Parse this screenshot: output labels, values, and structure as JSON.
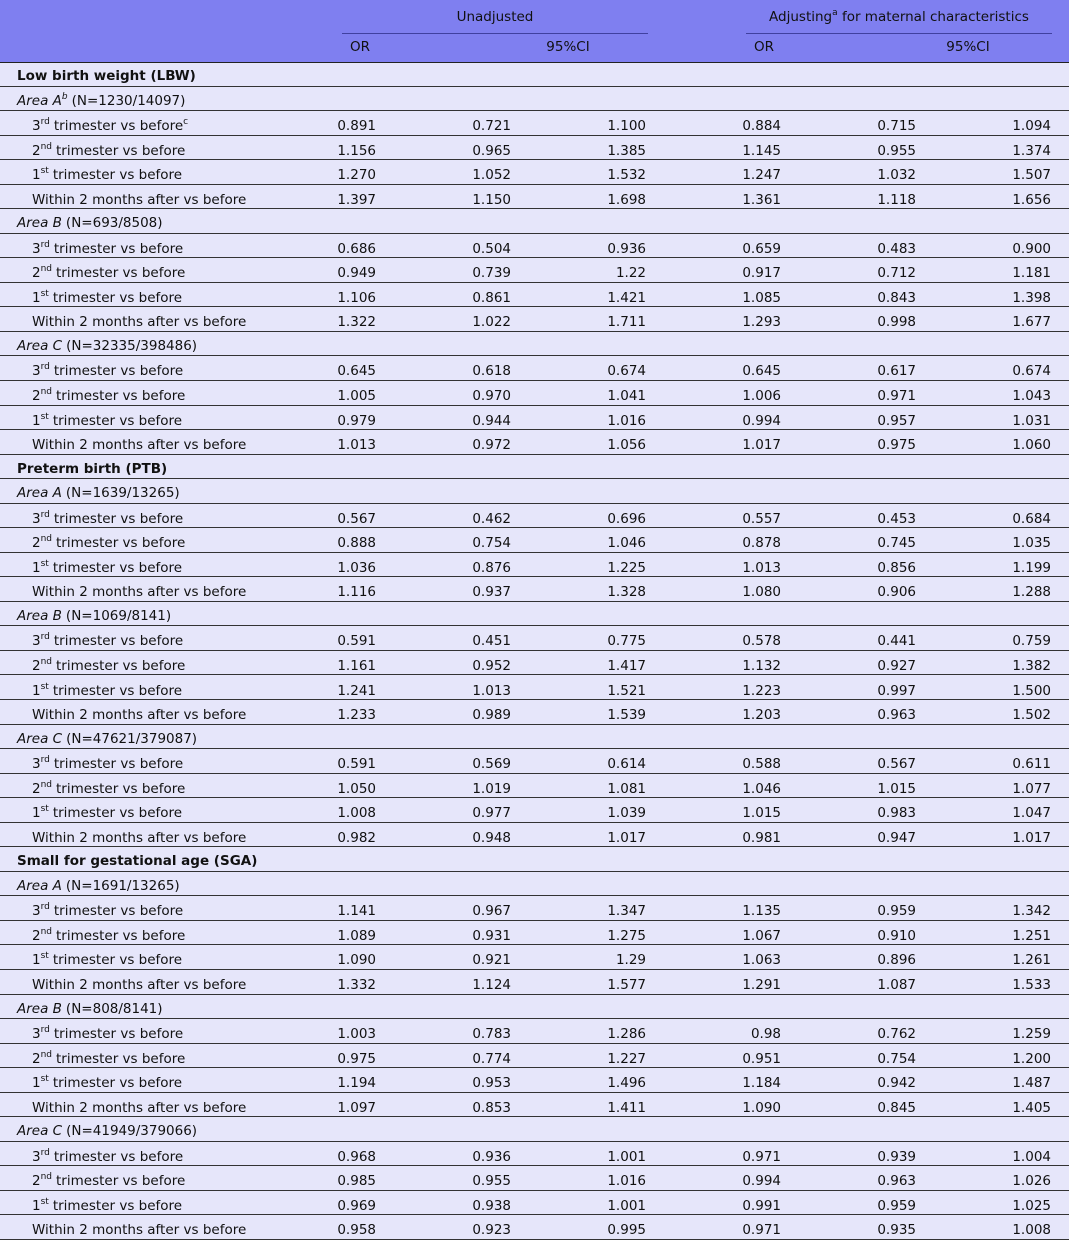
{
  "header": {
    "unadjusted": "Unadjusted",
    "adjusting": "Adjusting",
    "adjusting_note": "a",
    "adjusting_rest": "for maternal characteristics",
    "or": "OR",
    "ci": "95%CI"
  },
  "sections": [
    {
      "title": "Low birth weight (LBW)",
      "areas": [
        {
          "name": "Area A",
          "note": "b",
          "n": "(N=1230/14097)",
          "rows": [
            {
              "ordinal": "3",
              "suffix": "rd",
              "label": "trimester vs before",
              "note": "c",
              "values": [
                "0.891",
                "0.721",
                "1.100",
                "0.884",
                "0.715",
                "1.094"
              ]
            },
            {
              "ordinal": "2",
              "suffix": "nd",
              "label": "trimester vs before",
              "values": [
                "1.156",
                "0.965",
                "1.385",
                "1.145",
                "0.955",
                "1.374"
              ]
            },
            {
              "ordinal": "1",
              "suffix": "st",
              "label": "trimester vs before",
              "values": [
                "1.270",
                "1.052",
                "1.532",
                "1.247",
                "1.032",
                "1.507"
              ]
            },
            {
              "label": "Within 2 months after vs before",
              "values": [
                "1.397",
                "1.150",
                "1.698",
                "1.361",
                "1.118",
                "1.656"
              ]
            }
          ]
        },
        {
          "name": "Area B",
          "n": "(N=693/8508)",
          "rows": [
            {
              "ordinal": "3",
              "suffix": "rd",
              "label": "trimester vs before",
              "values": [
                "0.686",
                "0.504",
                "0.936",
                "0.659",
                "0.483",
                "0.900"
              ]
            },
            {
              "ordinal": "2",
              "suffix": "nd",
              "label": "trimester vs before",
              "values": [
                "0.949",
                "0.739",
                "1.22",
                "0.917",
                "0.712",
                "1.181"
              ]
            },
            {
              "ordinal": "1",
              "suffix": "st",
              "label": "trimester vs before",
              "values": [
                "1.106",
                "0.861",
                "1.421",
                "1.085",
                "0.843",
                "1.398"
              ]
            },
            {
              "label": "Within 2 months after vs before",
              "values": [
                "1.322",
                "1.022",
                "1.711",
                "1.293",
                "0.998",
                "1.677"
              ]
            }
          ]
        },
        {
          "name": "Area C",
          "n": "(N=32335/398486)",
          "rows": [
            {
              "ordinal": "3",
              "suffix": "rd",
              "label": "trimester vs before",
              "values": [
                "0.645",
                "0.618",
                "0.674",
                "0.645",
                "0.617",
                "0.674"
              ]
            },
            {
              "ordinal": "2",
              "suffix": "nd",
              "label": "trimester vs before",
              "values": [
                "1.005",
                "0.970",
                "1.041",
                "1.006",
                "0.971",
                "1.043"
              ]
            },
            {
              "ordinal": "1",
              "suffix": "st",
              "label": "trimester vs before",
              "values": [
                "0.979",
                "0.944",
                "1.016",
                "0.994",
                "0.957",
                "1.031"
              ]
            },
            {
              "label": "Within 2 months after vs before",
              "values": [
                "1.013",
                "0.972",
                "1.056",
                "1.017",
                "0.975",
                "1.060"
              ]
            }
          ]
        }
      ]
    },
    {
      "title": "Preterm birth (PTB)",
      "areas": [
        {
          "name": "Area A",
          "n": "(N=1639/13265)",
          "rows": [
            {
              "ordinal": "3",
              "suffix": "rd",
              "label": "trimester vs before",
              "values": [
                "0.567",
                "0.462",
                "0.696",
                "0.557",
                "0.453",
                "0.684"
              ]
            },
            {
              "ordinal": "2",
              "suffix": "nd",
              "label": "trimester vs before",
              "values": [
                "0.888",
                "0.754",
                "1.046",
                "0.878",
                "0.745",
                "1.035"
              ]
            },
            {
              "ordinal": "1",
              "suffix": "st",
              "label": "trimester vs before",
              "values": [
                "1.036",
                "0.876",
                "1.225",
                "1.013",
                "0.856",
                "1.199"
              ]
            },
            {
              "label": "Within 2 months after vs before",
              "values": [
                "1.116",
                "0.937",
                "1.328",
                "1.080",
                "0.906",
                "1.288"
              ]
            }
          ]
        },
        {
          "name": "Area B",
          "n": "(N=1069/8141)",
          "rows": [
            {
              "ordinal": "3",
              "suffix": "rd",
              "label": "trimester vs before",
              "values": [
                "0.591",
                "0.451",
                "0.775",
                "0.578",
                "0.441",
                "0.759"
              ]
            },
            {
              "ordinal": "2",
              "suffix": "nd",
              "label": "trimester vs before",
              "values": [
                "1.161",
                "0.952",
                "1.417",
                "1.132",
                "0.927",
                "1.382"
              ]
            },
            {
              "ordinal": "1",
              "suffix": "st",
              "label": "trimester vs before",
              "values": [
                "1.241",
                "1.013",
                "1.521",
                "1.223",
                "0.997",
                "1.500"
              ]
            },
            {
              "label": "Within 2 months after vs before",
              "values": [
                "1.233",
                "0.989",
                "1.539",
                "1.203",
                "0.963",
                "1.502"
              ]
            }
          ]
        },
        {
          "name": "Area C",
          "n": "(N=47621/379087)",
          "rows": [
            {
              "ordinal": "3",
              "suffix": "rd",
              "label": "trimester vs before",
              "values": [
                "0.591",
                "0.569",
                "0.614",
                "0.588",
                "0.567",
                "0.611"
              ]
            },
            {
              "ordinal": "2",
              "suffix": "nd",
              "label": "trimester vs before",
              "values": [
                "1.050",
                "1.019",
                "1.081",
                "1.046",
                "1.015",
                "1.077"
              ]
            },
            {
              "ordinal": "1",
              "suffix": "st",
              "label": "trimester vs before",
              "values": [
                "1.008",
                "0.977",
                "1.039",
                "1.015",
                "0.983",
                "1.047"
              ]
            },
            {
              "label": "Within 2 months after vs before",
              "values": [
                "0.982",
                "0.948",
                "1.017",
                "0.981",
                "0.947",
                "1.017"
              ]
            }
          ]
        }
      ]
    },
    {
      "title": "Small for gestational age (SGA)",
      "areas": [
        {
          "name": "Area A",
          "n": "(N=1691/13265)",
          "rows": [
            {
              "ordinal": "3",
              "suffix": "rd",
              "label": "trimester vs before",
              "values": [
                "1.141",
                "0.967",
                "1.347",
                "1.135",
                "0.959",
                "1.342"
              ]
            },
            {
              "ordinal": "2",
              "suffix": "nd",
              "label": "trimester vs before",
              "values": [
                "1.089",
                "0.931",
                "1.275",
                "1.067",
                "0.910",
                "1.251"
              ]
            },
            {
              "ordinal": "1",
              "suffix": "st",
              "label": "trimester vs before",
              "values": [
                "1.090",
                "0.921",
                "1.29",
                "1.063",
                "0.896",
                "1.261"
              ]
            },
            {
              "label": "Within 2 months after vs before",
              "values": [
                "1.332",
                "1.124",
                "1.577",
                "1.291",
                "1.087",
                "1.533"
              ]
            }
          ]
        },
        {
          "name": "Area B",
          "n": "(N=808/8141)",
          "rows": [
            {
              "ordinal": "3",
              "suffix": "rd",
              "label": "trimester vs before",
              "values": [
                "1.003",
                "0.783",
                "1.286",
                "0.98",
                "0.762",
                "1.259"
              ]
            },
            {
              "ordinal": "2",
              "suffix": "nd",
              "label": "trimester vs before",
              "values": [
                "0.975",
                "0.774",
                "1.227",
                "0.951",
                "0.754",
                "1.200"
              ]
            },
            {
              "ordinal": "1",
              "suffix": "st",
              "label": "trimester vs before",
              "values": [
                "1.194",
                "0.953",
                "1.496",
                "1.184",
                "0.942",
                "1.487"
              ]
            },
            {
              "label": "Within 2 months after vs before",
              "values": [
                "1.097",
                "0.853",
                "1.411",
                "1.090",
                "0.845",
                "1.405"
              ]
            }
          ]
        },
        {
          "name": "Area C",
          "n": "(N=41949/379066)",
          "rows": [
            {
              "ordinal": "3",
              "suffix": "rd",
              "label": "trimester vs before",
              "values": [
                "0.968",
                "0.936",
                "1.001",
                "0.971",
                "0.939",
                "1.004"
              ]
            },
            {
              "ordinal": "2",
              "suffix": "nd",
              "label": "trimester vs before",
              "values": [
                "0.985",
                "0.955",
                "1.016",
                "0.994",
                "0.963",
                "1.026"
              ]
            },
            {
              "ordinal": "1",
              "suffix": "st",
              "label": "trimester vs before",
              "values": [
                "0.969",
                "0.938",
                "1.001",
                "0.991",
                "0.959",
                "1.025"
              ]
            },
            {
              "label": "Within 2 months after vs before",
              "values": [
                "0.958",
                "0.923",
                "0.995",
                "0.971",
                "0.935",
                "1.008"
              ]
            }
          ]
        }
      ]
    }
  ]
}
